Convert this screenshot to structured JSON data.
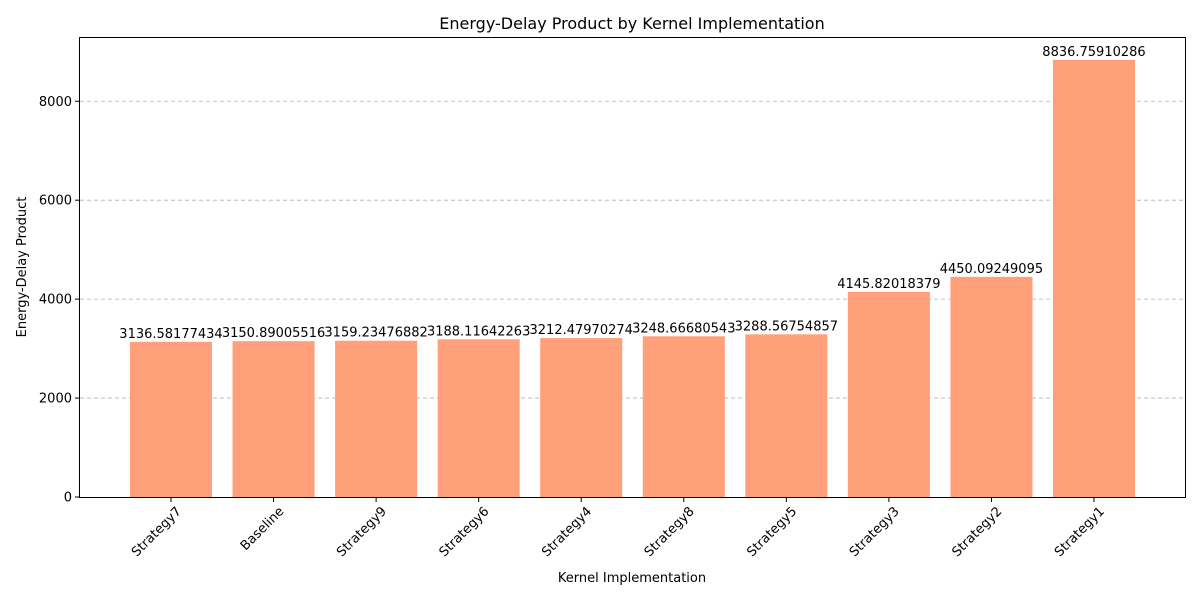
{
  "chart_data": {
    "type": "bar",
    "title": "Energy-Delay Product by Kernel Implementation",
    "xlabel": "Kernel Implementation",
    "ylabel": "Energy-Delay Product",
    "categories": [
      "Strategy7",
      "Baseline",
      "Strategy9",
      "Strategy6",
      "Strategy4",
      "Strategy8",
      "Strategy5",
      "Strategy3",
      "Strategy2",
      "Strategy1"
    ],
    "values": [
      3136.58177434,
      3150.89005516,
      3159.23476882,
      3188.11642263,
      3212.47970274,
      3248.66680543,
      3288.56754857,
      4145.82018379,
      4450.09249095,
      8836.75910286
    ],
    "value_labels": [
      "3136.58177434",
      "3150.89005516",
      "3159.23476882",
      "3188.11642263",
      "3212.47970274",
      "3248.66680543",
      "3288.56754857",
      "4145.82018379",
      "4450.09249095",
      "8836.75910286"
    ],
    "ylim": [
      0,
      9278.6
    ],
    "yticks": [
      0,
      2000,
      4000,
      6000,
      8000
    ],
    "grid": "y-dashed",
    "bar_color": "#FFA07A"
  }
}
